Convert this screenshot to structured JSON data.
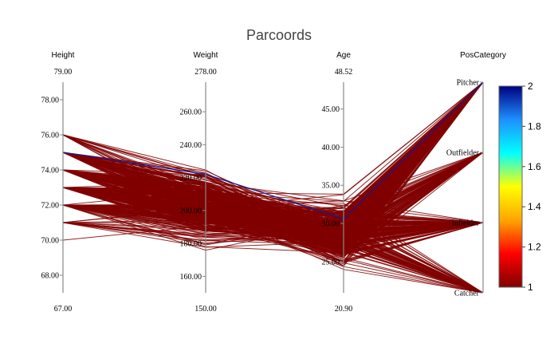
{
  "chart_data": {
    "type": "parcoords",
    "title": "Parcoords",
    "dimensions": [
      {
        "name": "Height",
        "kind": "numeric",
        "range": [
          67.0,
          79.0
        ],
        "range_labels": [
          "67.00",
          "79.00"
        ],
        "ticks": [
          68,
          70,
          72,
          74,
          76,
          78
        ],
        "tick_labels": [
          "68.00",
          "70.00",
          "72.00",
          "74.00",
          "76.00",
          "78.00"
        ]
      },
      {
        "name": "Weight",
        "kind": "numeric",
        "range": [
          150.0,
          278.0
        ],
        "range_labels": [
          "150.00",
          "278.00"
        ],
        "ticks": [
          160,
          180,
          200,
          220,
          240,
          260
        ],
        "tick_labels": [
          "160.00",
          "180.00",
          "200.00",
          "220.00",
          "240.00",
          "260.00"
        ]
      },
      {
        "name": "Age",
        "kind": "numeric",
        "range": [
          20.9,
          48.52
        ],
        "range_labels": [
          "20.90",
          "48.52"
        ],
        "ticks": [
          25,
          30,
          35,
          40,
          45
        ],
        "tick_labels": [
          "25.00",
          "30.00",
          "35.00",
          "40.00",
          "45.00"
        ]
      },
      {
        "name": "PosCategory",
        "kind": "categorical",
        "categories": [
          "Catcher",
          "Infielder",
          "Outfielder",
          "Pitcher"
        ],
        "codes": [
          0,
          1,
          2,
          3
        ]
      }
    ],
    "highlighted_line": {
      "values": [
        75.0,
        222.0,
        30.6,
        3
      ],
      "color_value": 2
    },
    "colorbar": {
      "range": [
        1,
        2
      ],
      "ticks": [
        1,
        1.2,
        1.4,
        1.6,
        1.8,
        2
      ],
      "tick_labels": [
        "1",
        "1.2",
        "1.4",
        "1.6",
        "1.8",
        "2"
      ]
    },
    "colors": {
      "line": "#800000",
      "highlight": "#1a1a8c",
      "axis": "#888888",
      "title": "#444444"
    },
    "colorscale": [
      "#800000",
      "#ff0000",
      "#ffa500",
      "#ffff00",
      "#00ffff",
      "#1e90ff",
      "#000080"
    ],
    "background_line_count": 420
  }
}
